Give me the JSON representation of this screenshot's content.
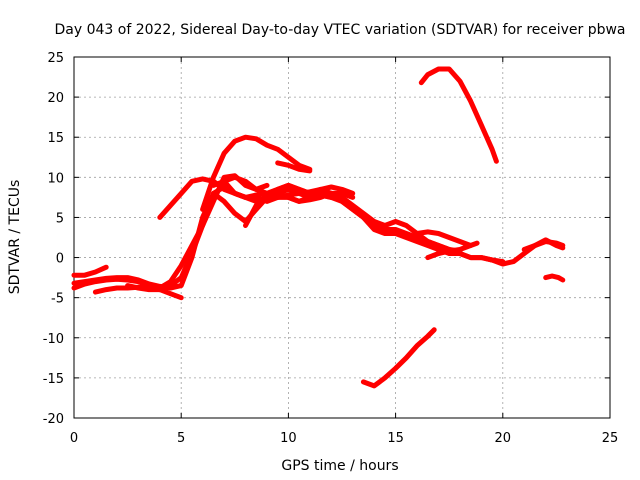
{
  "chart_data": {
    "type": "line",
    "title": "Day 043 of 2022, Sidereal Day-to-day VTEC variation (SDTVAR) for receiver pbwa",
    "xlabel": "GPS time / hours",
    "ylabel": "SDTVAR / TECUs",
    "xlim": [
      0,
      25
    ],
    "ylim": [
      -20,
      25
    ],
    "x_ticks": [
      "0",
      "5",
      "10",
      "15",
      "20",
      "25"
    ],
    "y_ticks": [
      "-20",
      "-15",
      "-10",
      "-5",
      "0",
      "5",
      "10",
      "15",
      "20",
      "25"
    ],
    "grid": true,
    "color": "#ff0000",
    "series": [
      {
        "name": "s1",
        "x": [
          0.0,
          0.5,
          1.0,
          1.5,
          2.0,
          2.5,
          3.0,
          3.5,
          4.0,
          4.5,
          5.0,
          5.5,
          6.0,
          6.5,
          7.0,
          7.5,
          8.0,
          8.5,
          9.0
        ],
        "y": [
          -3.8,
          -3.3,
          -3.0,
          -2.8,
          -2.7,
          -2.8,
          -3.0,
          -3.5,
          -3.8,
          -3.0,
          -1.0,
          1.5,
          4.0,
          7.0,
          10.0,
          10.2,
          9.0,
          8.5,
          9.0
        ]
      },
      {
        "name": "s2",
        "x": [
          0.0,
          0.5,
          1.0,
          1.5,
          2.0,
          2.5,
          3.0,
          3.5,
          4.0,
          4.5,
          5.0,
          5.5,
          6.0,
          6.5,
          7.0,
          7.5,
          8.0,
          8.5,
          9.0,
          9.5,
          10.0,
          10.5,
          11.0,
          11.5,
          12.0,
          12.5,
          13.0
        ],
        "y": [
          -3.2,
          -3.0,
          -2.8,
          -2.6,
          -2.5,
          -2.5,
          -2.8,
          -3.3,
          -3.6,
          -3.8,
          -3.5,
          0.0,
          5.0,
          8.0,
          8.8,
          8.0,
          7.5,
          7.8,
          8.0,
          7.5,
          7.8,
          8.0,
          8.2,
          8.5,
          8.8,
          8.5,
          8.0
        ]
      },
      {
        "name": "s3",
        "x": [
          0.0,
          0.5,
          1.0,
          1.5
        ],
        "y": [
          -2.2,
          -2.2,
          -1.8,
          -1.2
        ]
      },
      {
        "name": "s4",
        "x": [
          1.0,
          1.5,
          2.0,
          2.5,
          3.0,
          3.5,
          4.0,
          4.5,
          5.0
        ],
        "y": [
          -4.3,
          -4.0,
          -3.8,
          -3.8,
          -3.7,
          -3.8,
          -4.0,
          -4.5,
          -5.0
        ]
      },
      {
        "name": "s5",
        "x": [
          2.5,
          3.0,
          3.5,
          4.0,
          4.5,
          5.0,
          5.5,
          6.0,
          6.5,
          7.0,
          7.5,
          8.0,
          8.5,
          9.0,
          9.5,
          10.0,
          10.5,
          11.0,
          11.5,
          12.0
        ],
        "y": [
          -3.5,
          -3.8,
          -4.0,
          -4.0,
          -3.5,
          -2.5,
          0.5,
          4.0,
          7.5,
          9.5,
          10.0,
          9.5,
          8.5,
          8.0,
          8.5,
          9.0,
          8.5,
          8.0,
          7.8,
          7.5
        ]
      },
      {
        "name": "s6",
        "x": [
          4.0,
          4.5,
          5.0,
          5.5,
          6.0,
          6.5,
          7.0,
          7.5,
          8.0,
          8.5,
          9.0,
          9.5,
          10.0,
          10.5,
          11.0,
          11.5,
          12.0,
          12.5,
          13.0,
          13.5,
          14.0,
          14.5,
          15.0,
          15.5,
          16.0,
          16.5,
          17.0,
          17.5,
          18.0,
          18.5,
          19.0,
          19.5,
          20.0,
          20.5,
          21.0,
          21.5,
          22.0,
          22.5,
          22.8
        ],
        "y": [
          5.0,
          6.5,
          8.0,
          9.5,
          9.8,
          9.5,
          8.5,
          8.0,
          7.5,
          7.0,
          7.5,
          8.0,
          8.5,
          8.0,
          7.5,
          7.8,
          7.5,
          7.0,
          6.0,
          5.0,
          4.0,
          3.5,
          3.5,
          3.0,
          2.5,
          2.0,
          1.5,
          1.0,
          0.5,
          0.0,
          0.0,
          -0.3,
          -0.8,
          -0.5,
          0.5,
          1.5,
          2.0,
          1.8,
          1.5
        ]
      },
      {
        "name": "s7",
        "x": [
          6.0,
          6.5,
          7.0,
          7.5,
          8.0,
          8.5,
          9.0,
          9.5,
          10.0,
          10.5,
          11.0
        ],
        "y": [
          6.0,
          10.0,
          13.0,
          14.5,
          15.0,
          14.8,
          14.0,
          13.5,
          12.5,
          11.5,
          11.0
        ]
      },
      {
        "name": "s8",
        "x": [
          6.5,
          7.0,
          7.5,
          8.0,
          8.5,
          9.0,
          9.5,
          10.0,
          10.5,
          11.0,
          11.5,
          12.0,
          12.5,
          13.0,
          13.5,
          14.0,
          14.5,
          15.0,
          15.5,
          16.0,
          16.5,
          17.0,
          17.5,
          18.0
        ],
        "y": [
          8.0,
          7.0,
          5.5,
          4.5,
          6.0,
          7.5,
          8.5,
          9.0,
          8.5,
          8.0,
          8.5,
          8.0,
          7.5,
          6.5,
          5.5,
          4.5,
          4.0,
          4.5,
          4.0,
          3.0,
          2.0,
          1.5,
          1.0,
          0.8
        ]
      },
      {
        "name": "s9",
        "x": [
          6.5,
          7.0,
          7.5,
          8.0,
          8.5,
          9.0,
          9.5,
          10.0,
          10.5,
          11.0,
          11.5,
          12.0,
          12.5,
          13.0,
          13.5,
          14.0,
          14.5,
          15.0,
          15.5,
          16.0,
          16.5,
          17.0,
          17.5,
          18.0,
          18.5,
          19.0,
          19.5,
          20.0
        ],
        "y": [
          9.0,
          9.5,
          8.0,
          7.5,
          7.5,
          7.0,
          7.5,
          7.5,
          7.0,
          7.5,
          8.0,
          8.0,
          7.0,
          6.0,
          5.0,
          3.5,
          3.0,
          3.0,
          2.5,
          2.0,
          1.5,
          1.0,
          0.5,
          0.5,
          0.0,
          0.0,
          -0.3,
          -0.5
        ]
      },
      {
        "name": "s10",
        "x": [
          8.0,
          8.5,
          9.0,
          9.5,
          10.0,
          10.5,
          11.0,
          11.5,
          12.0,
          12.5,
          13.0
        ],
        "y": [
          4.0,
          6.5,
          7.5,
          8.0,
          7.5,
          7.0,
          7.2,
          7.5,
          8.0,
          8.0,
          7.5
        ]
      },
      {
        "name": "s11",
        "x": [
          9.5,
          10.0,
          10.5,
          11.0
        ],
        "y": [
          11.8,
          11.5,
          11.0,
          10.8
        ]
      },
      {
        "name": "s12",
        "x": [
          16.0,
          16.5,
          17.0,
          17.5,
          18.0,
          18.5
        ],
        "y": [
          3.0,
          3.2,
          3.0,
          2.5,
          2.0,
          1.5
        ]
      },
      {
        "name": "s13",
        "x": [
          16.5,
          17.0,
          17.5,
          18.0,
          18.5,
          18.8
        ],
        "y": [
          0.0,
          0.5,
          0.8,
          1.0,
          1.5,
          1.8
        ]
      },
      {
        "name": "s14",
        "x": [
          16.2,
          16.5,
          17.0,
          17.5,
          18.0,
          18.5,
          19.0,
          19.5,
          19.7
        ],
        "y": [
          21.8,
          22.8,
          23.5,
          23.5,
          22.0,
          19.5,
          16.5,
          13.5,
          12.0
        ]
      },
      {
        "name": "s15",
        "x": [
          13.5,
          14.0,
          14.5,
          15.0,
          15.5,
          16.0,
          16.5,
          16.8
        ],
        "y": [
          -15.5,
          -16.0,
          -15.0,
          -13.8,
          -12.5,
          -11.0,
          -9.8,
          -9.0
        ]
      },
      {
        "name": "s16",
        "x": [
          21.0,
          21.5,
          22.0,
          22.5,
          22.8
        ],
        "y": [
          1.0,
          1.5,
          2.2,
          1.5,
          1.2
        ]
      },
      {
        "name": "s17",
        "x": [
          22.0,
          22.3,
          22.6,
          22.8
        ],
        "y": [
          -2.5,
          -2.3,
          -2.5,
          -2.8
        ]
      }
    ]
  }
}
